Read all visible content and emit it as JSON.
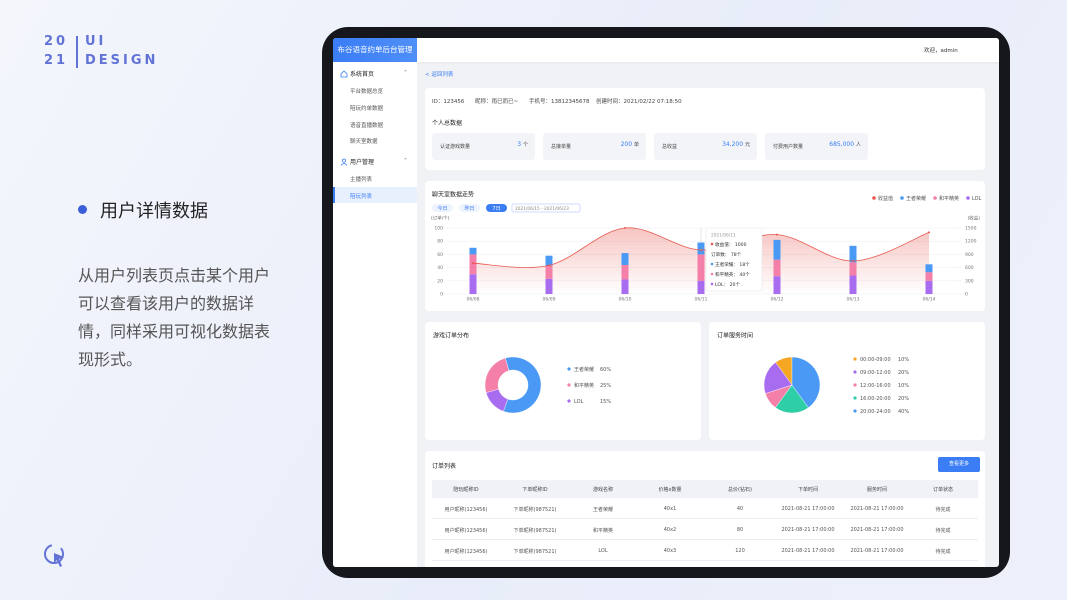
{
  "slide": {
    "year_top": "20",
    "year_bottom": "21",
    "label_top": "UI",
    "label_bottom": "DESIGN",
    "heading": "用户详情数据",
    "description": "从用户列表页点击某个用户可以查看该用户的数据详情，同样采用可视化数据表现形式。"
  },
  "app": {
    "title": "布谷语音约单后台管理",
    "user": "欢迎，admin",
    "menu": [
      {
        "label": "系统首页",
        "items": [
          "平台数据总览",
          "陪玩约单数据",
          "语音直播数据",
          "聊天室数据"
        ]
      },
      {
        "label": "用户管理",
        "items": [
          "主播列表",
          "陪玩列表"
        ]
      }
    ],
    "back": "返回列表",
    "profile": [
      "ID：123456",
      "昵称：雨已而已~",
      "手机号：13812345678",
      "创建时间：2021/02/22  07:18:50"
    ],
    "stats_title": "个人总数据",
    "stats": [
      {
        "label": "认证游戏数量",
        "value": "3",
        "unit": "个"
      },
      {
        "label": "总接单量",
        "value": "200",
        "unit": "单"
      },
      {
        "label": "总收益",
        "value": "34,200",
        "unit": "元"
      },
      {
        "label": "付费用户数量",
        "value": "685,000",
        "unit": "人"
      }
    ]
  },
  "chart_data": [
    {
      "type": "bar",
      "stacked": true,
      "title": "聊天室数据走势",
      "filters": [
        "今日",
        "昨日",
        "7日"
      ],
      "date_range": "2021/06/15 - 2021/06/23",
      "ylabel": "(订单/个)",
      "y2label": "(收益)",
      "categories": [
        "06/08",
        "06/09",
        "06/10",
        "06/11",
        "06/12",
        "06/13",
        "06/14"
      ],
      "ylim": [
        0,
        100
      ],
      "yticks": [
        0,
        20,
        40,
        60,
        80,
        100
      ],
      "y2lim": [
        0,
        1500
      ],
      "y2ticks": [
        0,
        300,
        600,
        900,
        1200,
        1500
      ],
      "grid": true,
      "series": [
        {
          "name": "收益值",
          "type": "line",
          "axis": "y2",
          "color": "#e8584f",
          "values": [
            700,
            650,
            1500,
            1000,
            1350,
            750,
            1400
          ]
        },
        {
          "name": "王者荣耀",
          "color": "#4a9af5",
          "values": [
            10,
            15,
            18,
            18,
            30,
            25,
            12
          ]
        },
        {
          "name": "和平精英",
          "color": "#f47fa8",
          "values": [
            30,
            20,
            22,
            40,
            25,
            20,
            13
          ]
        },
        {
          "name": "LOL",
          "color": "#a86cf0",
          "values": [
            30,
            23,
            22,
            20,
            27,
            28,
            20
          ]
        }
      ],
      "tooltip": {
        "title": "2021/06/11",
        "rows": [
          "收益值： 1000",
          "订单数： 78个",
          "王者荣耀： 18个",
          "和平精英： 40个",
          "LOL： 20个"
        ]
      }
    },
    {
      "type": "donut",
      "title": "游戏订单分布",
      "categories": [
        "王者荣耀",
        "和平精英",
        "LOL"
      ],
      "values": [
        60,
        25,
        15
      ],
      "value_labels": [
        "60%",
        "25%",
        "15%"
      ],
      "colors": [
        "#4a9af5",
        "#f47fa8",
        "#a86cf0"
      ]
    },
    {
      "type": "pie",
      "title": "订单服务时间",
      "categories": [
        "00:00-09:00",
        "09:00-12:00",
        "12:00-16:00",
        "16:00-20:00",
        "20:00-24:00"
      ],
      "values": [
        10,
        20,
        10,
        20,
        40
      ],
      "value_labels": [
        "10%",
        "20%",
        "10%",
        "20%",
        "40%"
      ],
      "colors": [
        "#f5a623",
        "#a86cf0",
        "#f47fa8",
        "#2ecfa6",
        "#4a9af5"
      ]
    }
  ],
  "table": {
    "title": "订单列表",
    "button": "查看更多",
    "columns": [
      "陪玩昵称ID",
      "下单昵称ID",
      "游戏名称",
      "价格x数量",
      "总价(钻石)",
      "下单时间",
      "服务时间",
      "订单状态"
    ],
    "rows": [
      [
        "用户昵称(123456)",
        "下单昵称(987521)",
        "王者荣耀",
        "40x1",
        "40",
        "2021-08-21  17:00:00",
        "2021-08-21  17:00:00",
        "待完成"
      ],
      [
        "用户昵称(123456)",
        "下单昵称(987521)",
        "和平精英",
        "40x2",
        "80",
        "2021-08-21  17:00:00",
        "2021-08-21  17:00:00",
        "待完成"
      ],
      [
        "用户昵称(123456)",
        "下单昵称(987521)",
        "LOL",
        "40x3",
        "120",
        "2021-08-21  17:00:00",
        "2021-08-21  17:00:00",
        "待完成"
      ]
    ]
  }
}
